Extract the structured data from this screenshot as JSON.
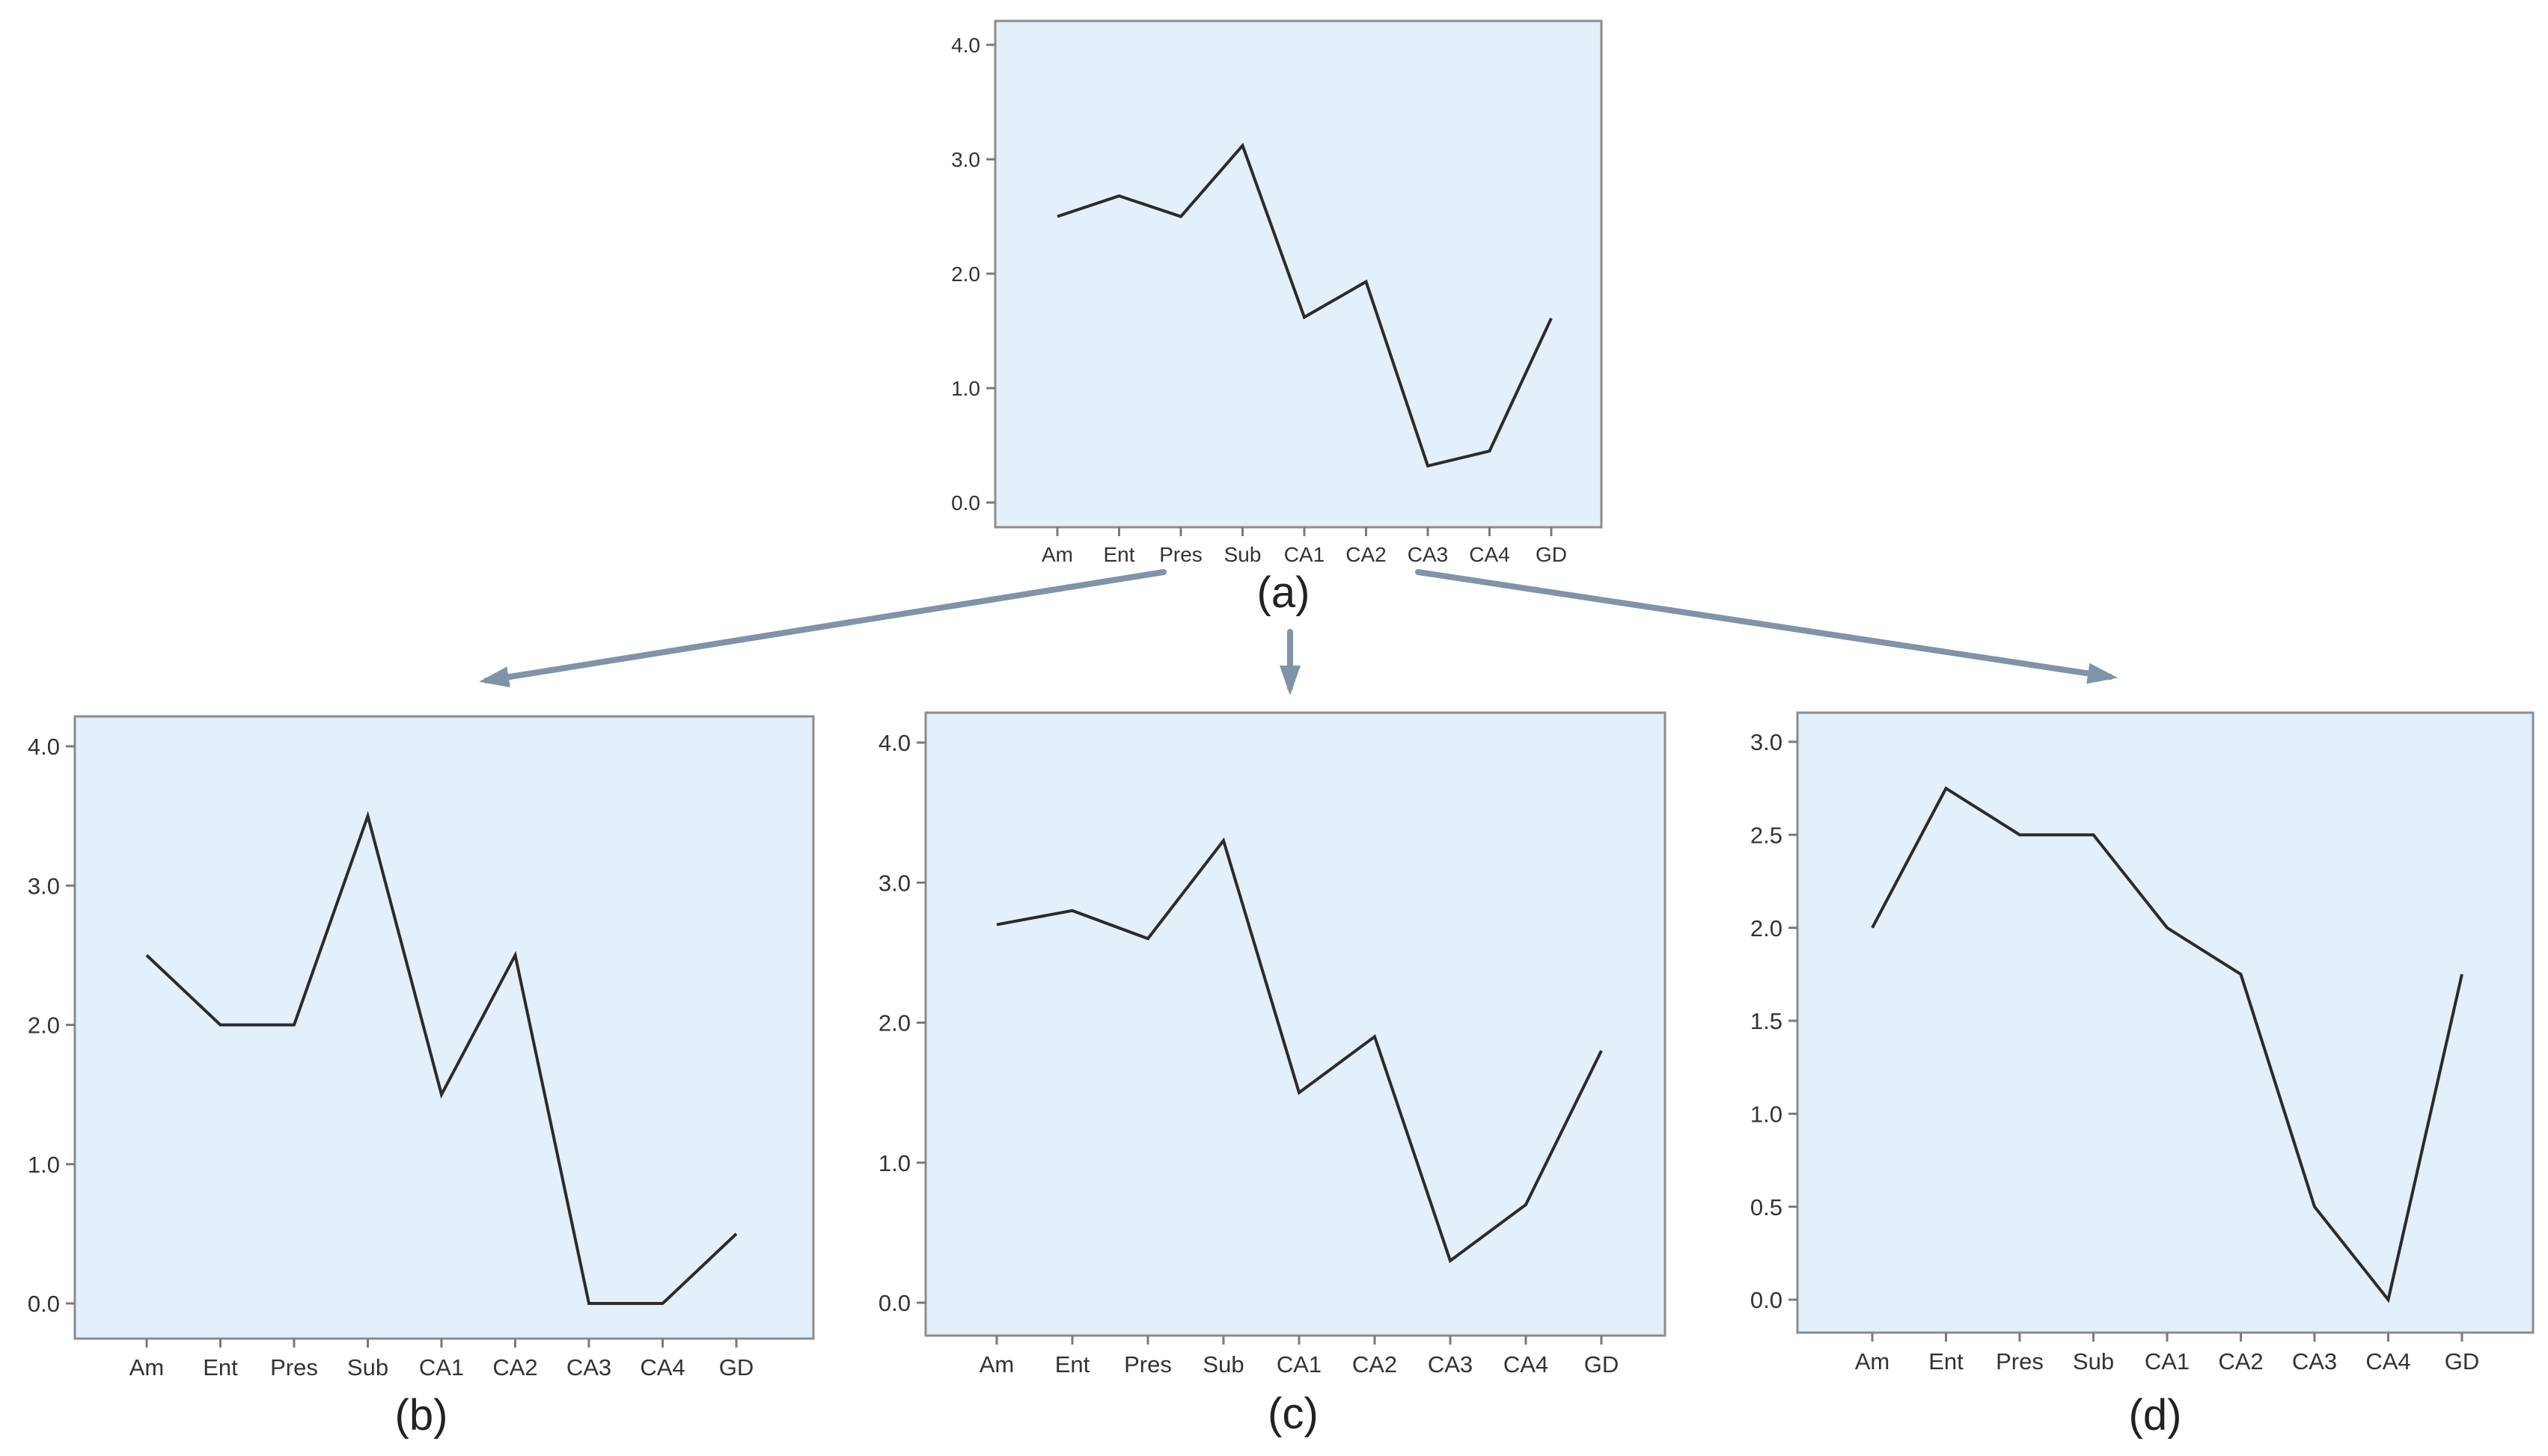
{
  "colors": {
    "plot_background": "#e3eff9",
    "plot_border": "#8c8c8c",
    "axis": "#7a7a7a",
    "line": "#2b2b2b",
    "arrow": "#7f93a9"
  },
  "chart_data": [
    {
      "type": "line",
      "caption": "(a)",
      "categories": [
        "Am",
        "Ent",
        "Pres",
        "Sub",
        "CA1",
        "CA2",
        "CA3",
        "CA4",
        "GD"
      ],
      "values": [
        2.5,
        2.68,
        2.5,
        3.12,
        1.62,
        1.93,
        0.32,
        0.45,
        1.61
      ],
      "ylim": [
        0,
        4
      ],
      "yticks": [
        "0.0",
        "1.0",
        "2.0",
        "3.0",
        "4.0"
      ],
      "ytick_values": [
        0,
        1,
        2,
        3,
        4
      ],
      "grid": false
    },
    {
      "type": "line",
      "caption": "(b)",
      "categories": [
        "Am",
        "Ent",
        "Pres",
        "Sub",
        "CA1",
        "CA2",
        "CA3",
        "CA4",
        "GD"
      ],
      "values": [
        2.5,
        2.0,
        2.0,
        3.5,
        1.5,
        2.5,
        0.0,
        0.0,
        0.5
      ],
      "ylim": [
        0,
        4
      ],
      "yticks": [
        "0.0",
        "1.0",
        "2.0",
        "3.0",
        "4.0"
      ],
      "ytick_values": [
        0,
        1,
        2,
        3,
        4
      ],
      "grid": false
    },
    {
      "type": "line",
      "caption": "(c)",
      "categories": [
        "Am",
        "Ent",
        "Pres",
        "Sub",
        "CA1",
        "CA2",
        "CA3",
        "CA4",
        "GD"
      ],
      "values": [
        2.7,
        2.8,
        2.6,
        3.3,
        1.5,
        1.9,
        0.3,
        0.7,
        1.8
      ],
      "ylim": [
        0,
        4
      ],
      "yticks": [
        "0.0",
        "1.0",
        "2.0",
        "3.0",
        "4.0"
      ],
      "ytick_values": [
        0,
        1,
        2,
        3,
        4
      ],
      "grid": false
    },
    {
      "type": "line",
      "caption": "(d)",
      "categories": [
        "Am",
        "Ent",
        "Pres",
        "Sub",
        "CA1",
        "CA2",
        "CA3",
        "CA4",
        "GD"
      ],
      "values": [
        2.0,
        2.75,
        2.5,
        2.5,
        2.0,
        1.75,
        0.5,
        0.0,
        1.75
      ],
      "ylim": [
        0,
        3
      ],
      "yticks": [
        "0.0",
        "0.5",
        "1.0",
        "1.5",
        "2.0",
        "2.5",
        "3.0"
      ],
      "ytick_values": [
        0,
        0.5,
        1,
        1.5,
        2,
        2.5,
        3
      ],
      "grid": false
    }
  ]
}
